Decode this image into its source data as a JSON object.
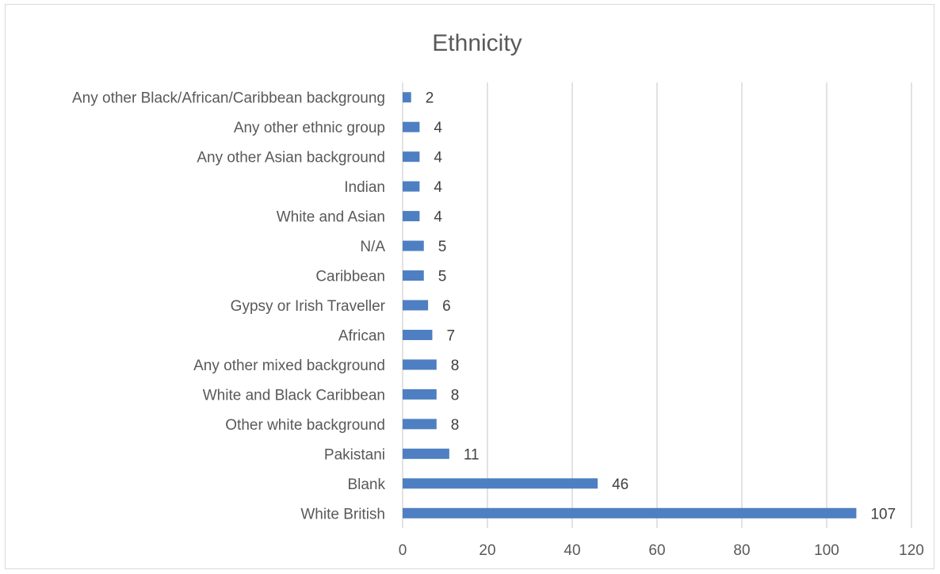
{
  "chart_data": {
    "type": "bar",
    "orientation": "horizontal",
    "title": "Ethnicity",
    "xlabel": "",
    "ylabel": "",
    "xlim": [
      0,
      120
    ],
    "x_ticks": [
      0,
      20,
      40,
      60,
      80,
      100,
      120
    ],
    "grid": true,
    "legend": "none",
    "bar_color": "#4e7fc2",
    "categories": [
      "Any other Black/African/Caribbean backgroung",
      "Any other ethnic group",
      "Any other Asian background",
      "Indian",
      "White and Asian",
      "N/A",
      "Caribbean",
      "Gypsy or Irish Traveller",
      "African",
      "Any other mixed background",
      "White and Black Caribbean",
      "Other white background",
      "Pakistani",
      "Blank",
      "White British"
    ],
    "values": [
      2,
      4,
      4,
      4,
      4,
      5,
      5,
      6,
      7,
      8,
      8,
      8,
      11,
      46,
      107
    ]
  }
}
